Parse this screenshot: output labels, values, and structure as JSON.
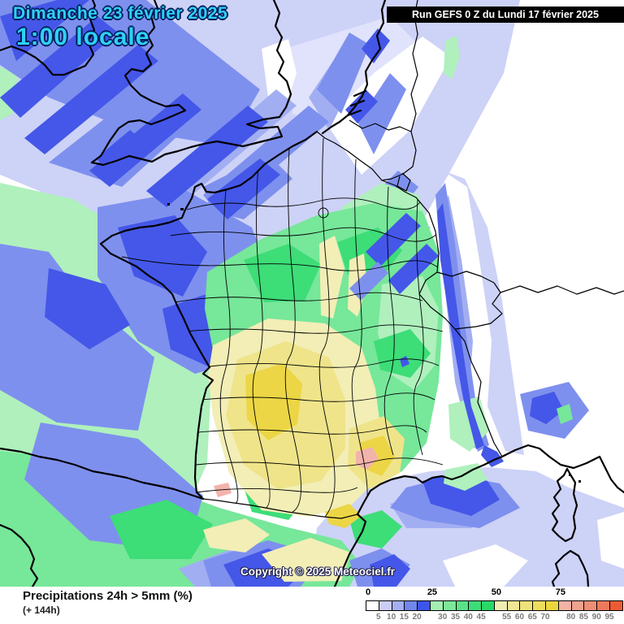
{
  "header": {
    "date_line": "Dimanche 23 février 2025",
    "time_line": "1:00 locale"
  },
  "run_banner": {
    "text": "Run GEFS 0 Z du Lundi 17 février 2025"
  },
  "map_overlay": {
    "copyright": "Copyright © 2025 Meteociel.fr"
  },
  "footer": {
    "title": "Precipitations 24h > 5mm (%)",
    "subtitle": "(+ 144h)"
  },
  "legend": {
    "major_ticks": [
      "0",
      "25",
      "50",
      "75"
    ],
    "minor_ticks": [
      "5",
      "10",
      "15",
      "20",
      "30",
      "35",
      "40",
      "45",
      "55",
      "60",
      "65",
      "70",
      "80",
      "85",
      "90",
      "95"
    ],
    "cells": [
      "#ffffff",
      "#ccccf8",
      "#a4b0f2",
      "#7286ec",
      "#3d55e8",
      "#a4eeb2",
      "#7ce898",
      "#5ae288",
      "#3edc78",
      "#2ad868",
      "#f0ecb2",
      "#efe794",
      "#eee278",
      "#eedd5c",
      "#ecd63e",
      "#f2b2a6",
      "#f0a28e",
      "#ee8e76",
      "#ed7a5c",
      "#ec5c34"
    ]
  },
  "colors": {
    "title_text": "#2fd0f8",
    "title_outline": "#001e5a",
    "banner_bg": "#000000",
    "banner_text": "#ffffff",
    "sea_low": "#cdd2f7",
    "rain_blue": "#4457e8",
    "rain_green": "#3ddd77",
    "rain_yellow": "#ecd645",
    "rain_pink": "#f2b3ab"
  }
}
